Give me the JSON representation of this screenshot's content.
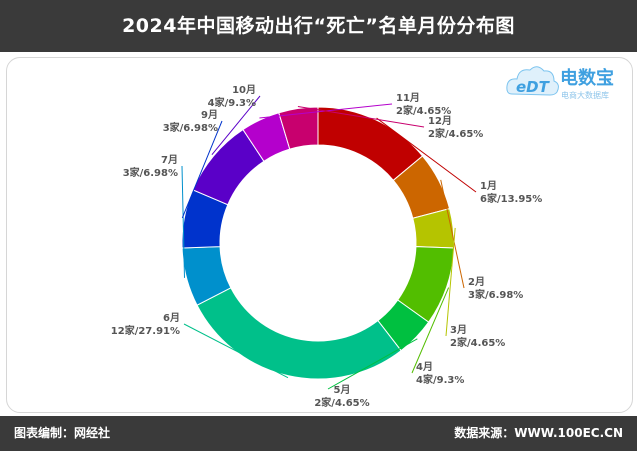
{
  "header": {
    "title": "2024年中国移动出行“死亡”名单月份分布图"
  },
  "logo": {
    "badge_text": "eDT",
    "name": "电数宝",
    "subtitle": "电商大数据库",
    "brand_color": "#3fa0e0"
  },
  "footer": {
    "left": "图表编制：网经社",
    "right": "数据来源：WWW.100EC.CN"
  },
  "chart_data": {
    "type": "pie",
    "title": "2024年中国移动出行“死亡”名单月份分布图",
    "donut": true,
    "slices": [
      {
        "label": "1月",
        "count": "6家",
        "percent": "13.95%",
        "value": 6,
        "color": "#c00000"
      },
      {
        "label": "2月",
        "count": "3家",
        "percent": "6.98%",
        "value": 3,
        "color": "#cc6600"
      },
      {
        "label": "3月",
        "count": "2家",
        "percent": "4.65%",
        "value": 2,
        "color": "#b5c400"
      },
      {
        "label": "4月",
        "count": "4家",
        "percent": "9.3%",
        "value": 4,
        "color": "#52be00"
      },
      {
        "label": "5月",
        "count": "2家",
        "percent": "4.65%",
        "value": 2,
        "color": "#00c040"
      },
      {
        "label": "6月",
        "count": "12家",
        "percent": "27.91%",
        "value": 12,
        "color": "#00c08a"
      },
      {
        "label": "7月",
        "count": "3家",
        "percent": "6.98%",
        "value": 3,
        "color": "#0090cc"
      },
      {
        "label": "9月",
        "count": "3家",
        "percent": "6.98%",
        "value": 3,
        "color": "#0033cc"
      },
      {
        "label": "10月",
        "count": "4家",
        "percent": "9.3%",
        "value": 4,
        "color": "#5a00c8"
      },
      {
        "label": "11月",
        "count": "2家",
        "percent": "4.65%",
        "value": 2,
        "color": "#b400cc"
      },
      {
        "label": "12月",
        "count": "2家",
        "percent": "4.65%",
        "value": 2,
        "color": "#c8006e"
      }
    ]
  }
}
